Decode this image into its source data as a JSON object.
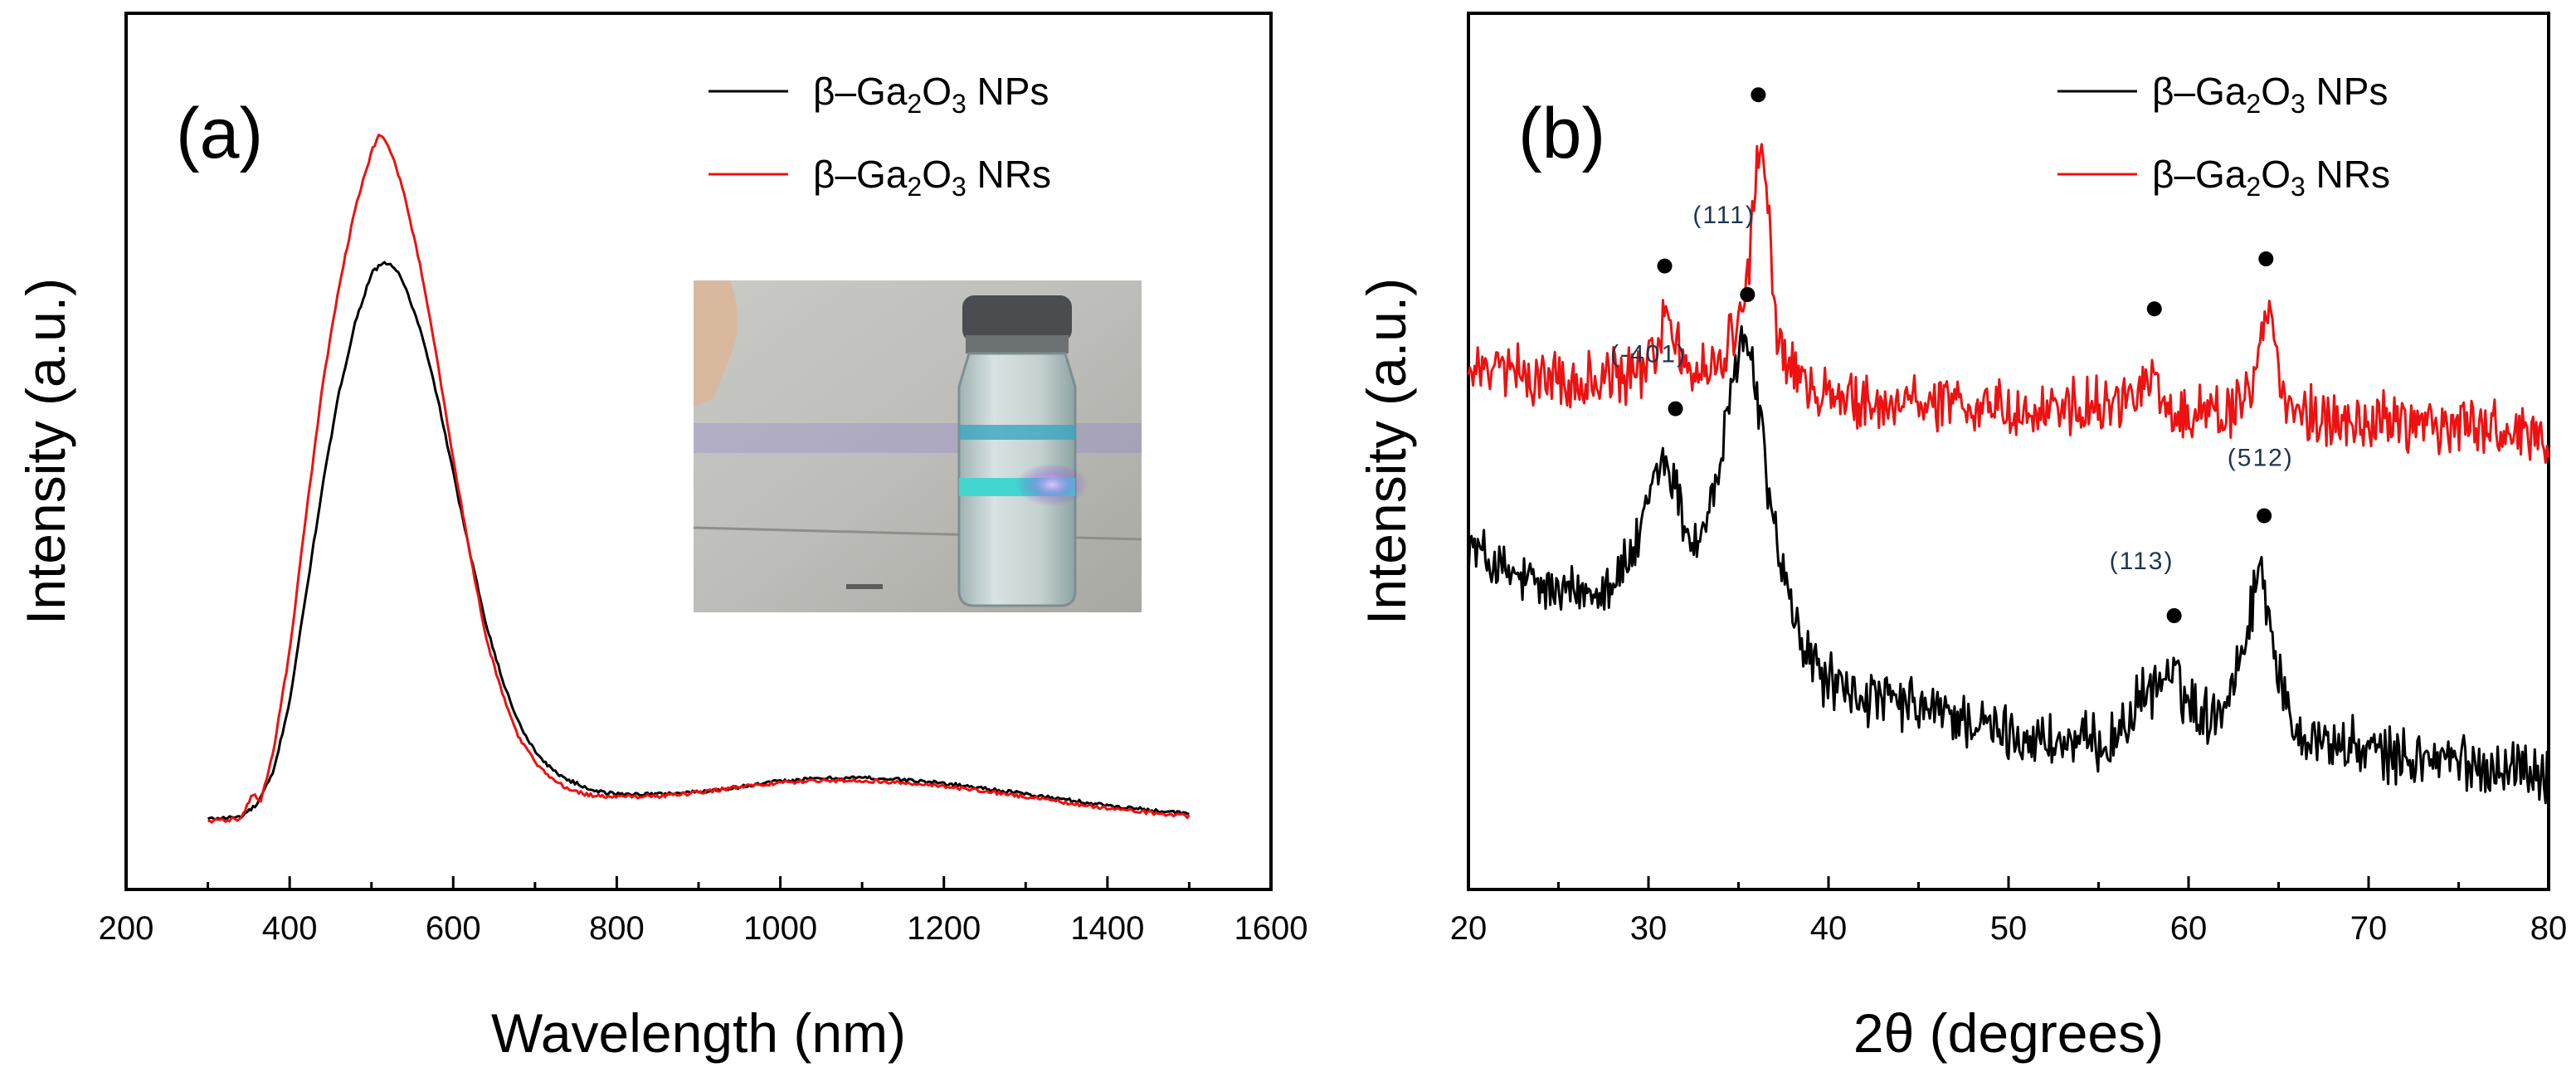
{
  "colors": {
    "nps": "#000000",
    "nrs": "#ee1111",
    "axis": "#000000",
    "peak_label": "#1d3550"
  },
  "legend": {
    "nps": {
      "prefix": "β–Ga",
      "sub1": "2",
      "mid": "O",
      "sub2": "3",
      "suffix": " NPs"
    },
    "nrs": {
      "prefix": "β–Ga",
      "sub1": "2",
      "mid": "O",
      "sub2": "3",
      "suffix": " NRs"
    }
  },
  "chart_data": [
    {
      "panel": "(a)",
      "type": "line",
      "title": "",
      "xlabel": "Wavelength (nm)",
      "ylabel": "Intensity (a.u.)",
      "xlim": [
        200,
        1600
      ],
      "ylim": [
        0,
        100
      ],
      "xticks": [
        200,
        400,
        600,
        800,
        1000,
        1200,
        1400,
        1600
      ],
      "yticks_shown": false,
      "legend_position": "top-right",
      "inset": {
        "description_name": "photo-of-vial-under-uv-light"
      },
      "series": [
        {
          "name": "β–Ga2O3 NPs",
          "color_key": "nps",
          "x": [
            300,
            340,
            360,
            380,
            400,
            420,
            440,
            460,
            480,
            500,
            510,
            520,
            530,
            540,
            560,
            580,
            600,
            620,
            640,
            660,
            680,
            700,
            720,
            740,
            760,
            780,
            800,
            850,
            900,
            950,
            1000,
            1050,
            1100,
            1150,
            1200,
            1250,
            1300,
            1350,
            1400,
            1450,
            1500
          ],
          "y": [
            1.5,
            1.8,
            3.5,
            8,
            18,
            33,
            48,
            61,
            71,
            78,
            79,
            79.5,
            78.5,
            76.5,
            70,
            61,
            50,
            39,
            29,
            21,
            15,
            11,
            8.5,
            7,
            6,
            5.3,
            5,
            5,
            5.3,
            6,
            6.8,
            7.2,
            7.3,
            7,
            6.5,
            5.8,
            5,
            4.2,
            3.4,
            2.8,
            2.2
          ]
        },
        {
          "name": "β–Ga2O3 NRs",
          "color_key": "nrs",
          "x": [
            300,
            340,
            355,
            365,
            380,
            400,
            420,
            440,
            460,
            480,
            500,
            510,
            520,
            530,
            540,
            560,
            580,
            600,
            620,
            640,
            660,
            680,
            700,
            720,
            740,
            760,
            780,
            800,
            850,
            900,
            950,
            1000,
            1050,
            1100,
            1150,
            1200,
            1250,
            1300,
            1350,
            1400,
            1450,
            1500
          ],
          "y": [
            1.2,
            1.5,
            5,
            4,
            11,
            25,
            44,
            62,
            76,
            87,
            95,
            97.5,
            96,
            93,
            89,
            79,
            66,
            52,
            39,
            27,
            19,
            13,
            9.5,
            7.2,
            5.8,
            5,
            4.7,
            4.6,
            4.7,
            5.2,
            6,
            6.6,
            6.9,
            6.9,
            6.6,
            6.1,
            5.4,
            4.6,
            3.8,
            3,
            2.4,
            1.9
          ]
        }
      ]
    },
    {
      "panel": "(b)",
      "type": "line",
      "title": "",
      "xlabel": "2θ (degrees)",
      "ylabel": "Intensity (a.u.)",
      "xlim": [
        20,
        80
      ],
      "ylim": [
        0,
        100
      ],
      "xticks": [
        20,
        30,
        40,
        50,
        60,
        70,
        80
      ],
      "yticks_shown": false,
      "legend_position": "top-right",
      "series": [
        {
          "name": "β–Ga2O3 NPs",
          "color_key": "nps",
          "x": [
            20,
            21,
            22,
            23,
            24,
            25,
            26,
            27,
            28,
            29,
            29.6,
            30.2,
            30.8,
            31.4,
            32,
            32.6,
            33.2,
            33.8,
            34.4,
            34.8,
            35.2,
            35.5,
            35.8,
            36.1,
            36.4,
            36.8,
            37.3,
            37.9,
            38.5,
            39.5,
            41,
            43,
            45,
            47,
            49,
            51,
            53,
            55,
            56,
            57,
            58,
            59,
            60,
            61,
            62,
            63,
            63.6,
            64,
            64.4,
            64.8,
            65.3,
            66,
            67,
            68,
            70,
            72,
            74,
            76,
            78,
            80
          ],
          "y": [
            40,
            38,
            36,
            35,
            34,
            33,
            33,
            34,
            35,
            38,
            41,
            48,
            52,
            49,
            43,
            40,
            43,
            49,
            57,
            64,
            70,
            67,
            64,
            60,
            53,
            45,
            38,
            31,
            26,
            22,
            19,
            18,
            17,
            16,
            14,
            13,
            12,
            12,
            13,
            17,
            20,
            22,
            18,
            16,
            18,
            25,
            33,
            37,
            32,
            25,
            18,
            14,
            13,
            12,
            11,
            10,
            10,
            9,
            9,
            8
          ]
        },
        {
          "name": "β–Ga2O3 NRs",
          "color_key": "nrs",
          "x": [
            20,
            22,
            24,
            26,
            28,
            29,
            30,
            30.5,
            30.9,
            31.3,
            31.8,
            32.5,
            33.5,
            34.5,
            35.2,
            35.6,
            35.9,
            36.2,
            36.5,
            36.8,
            37.2,
            37.8,
            38.5,
            40,
            42,
            44,
            46,
            48,
            50,
            52,
            54,
            56,
            57,
            57.6,
            58,
            58.3,
            58.7,
            59.3,
            60,
            61,
            62,
            63,
            63.6,
            64.1,
            64.5,
            64.9,
            65.5,
            66.5,
            68,
            70,
            72,
            74,
            76,
            78,
            79,
            80
          ],
          "y": [
            64,
            64,
            63.5,
            63,
            63,
            63.5,
            65,
            69,
            72,
            70,
            66,
            64.5,
            65,
            68,
            72,
            80,
            90,
            96,
            92,
            80,
            69,
            64.5,
            63,
            61,
            60,
            60,
            60,
            60,
            59,
            59,
            59,
            59,
            60,
            62,
            66,
            63,
            60,
            58.5,
            58,
            58,
            58,
            59,
            62,
            70,
            72,
            65,
            60,
            58,
            57.5,
            57,
            57,
            56.5,
            56.5,
            56,
            55,
            55
          ]
        }
      ],
      "markers": [
        {
          "series": "β–Ga2O3 NRs",
          "x": 30.9,
          "y": 79
        },
        {
          "series": "β–Ga2O3 NRs",
          "x": 36.1,
          "y": 103
        },
        {
          "series": "β–Ga2O3 NRs",
          "x": 58.1,
          "y": 73
        },
        {
          "series": "β–Ga2O3 NPs",
          "x": 31.5,
          "y": 59
        },
        {
          "series": "β–Ga2O3 NPs",
          "x": 35.5,
          "y": 75
        },
        {
          "series": "β–Ga2O3 NPs",
          "x": 59.2,
          "y": 30
        },
        {
          "series": "β–Ga2O3 NRs",
          "x": 64.3,
          "y": 80
        },
        {
          "series": "β–Ga2O3 NPs",
          "x": 64.2,
          "y": 44
        }
      ],
      "peak_labels": [
        {
          "text": "(111)",
          "x": 34.2,
          "y": 85
        },
        {
          "text": "(-401)",
          "x": 30.0,
          "y": 65.5
        },
        {
          "text": "(512)",
          "x": 64.0,
          "y": 51
        },
        {
          "text": "(113)",
          "x": 57.4,
          "y": 36.5
        }
      ]
    }
  ]
}
